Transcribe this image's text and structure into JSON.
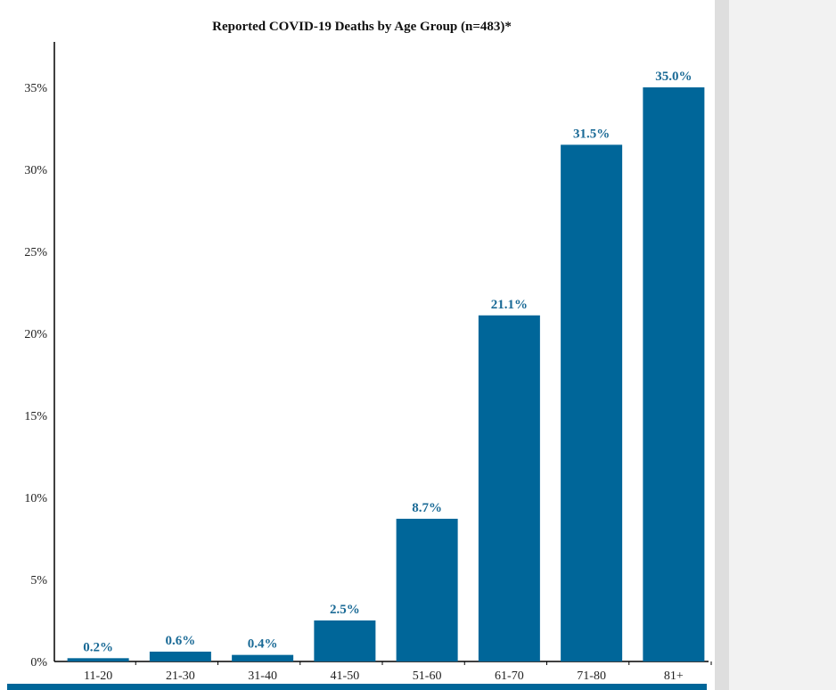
{
  "chart_data": {
    "type": "bar",
    "title": "Reported COVID-19 Deaths by Age Group (n=483)*",
    "xlabel": "",
    "ylabel": "",
    "categories": [
      "11-20",
      "21-30",
      "31-40",
      "41-50",
      "51-60",
      "61-70",
      "71-80",
      "81+"
    ],
    "values": [
      0.2,
      0.6,
      0.4,
      2.5,
      8.7,
      21.1,
      31.5,
      35.0
    ],
    "data_labels": [
      "0.2%",
      "0.6%",
      "0.4%",
      "2.5%",
      "8.7%",
      "21.1%",
      "31.5%",
      "35.0%"
    ],
    "ylim": [
      0,
      35
    ],
    "y_ticks": [
      0,
      5,
      10,
      15,
      20,
      25,
      30,
      35
    ],
    "y_tick_labels": [
      "0%",
      "5%",
      "10%",
      "15%",
      "20%",
      "25%",
      "30%",
      "35%"
    ],
    "grid": false,
    "legend": "none"
  },
  "colors": {
    "bar": "#006699",
    "label": "#1a6a96",
    "axis": "#000000",
    "bottom_rule": "#006699"
  }
}
